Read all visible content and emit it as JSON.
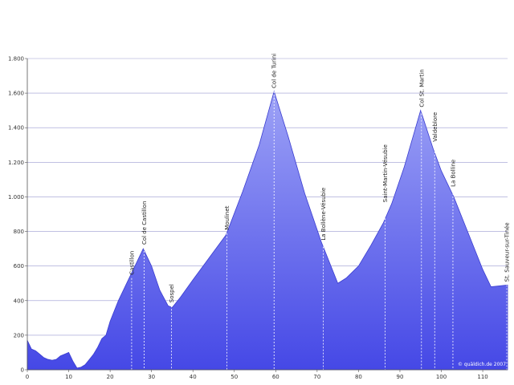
{
  "chart_data": {
    "type": "area",
    "title": "",
    "xlabel": "",
    "ylabel": "",
    "xlim": [
      0,
      116
    ],
    "ylim": [
      0,
      1800
    ],
    "grid": true,
    "credit": "© quäldich.de 2007",
    "colors": {
      "fill_top": "#9da2f6",
      "fill_bottom": "#4548e6",
      "stroke": "#3a3dd0",
      "grid": "#9a9ad0",
      "marker": "#ffffff"
    },
    "y_ticks": [
      {
        "value": 0,
        "label": "0"
      },
      {
        "value": 200,
        "label": "200"
      },
      {
        "value": 400,
        "label": "400"
      },
      {
        "value": 600,
        "label": "600"
      },
      {
        "value": 800,
        "label": "800"
      },
      {
        "value": 1000,
        "label": "1.000"
      },
      {
        "value": 1200,
        "label": "1.200"
      },
      {
        "value": 1400,
        "label": "1.400"
      },
      {
        "value": 1600,
        "label": "1.600"
      },
      {
        "value": 1800,
        "label": "1.800"
      }
    ],
    "x_ticks": [
      {
        "value": 0,
        "label": "0"
      },
      {
        "value": 10,
        "label": "10"
      },
      {
        "value": 20,
        "label": "20"
      },
      {
        "value": 30,
        "label": "30"
      },
      {
        "value": 40,
        "label": "40"
      },
      {
        "value": 50,
        "label": "50"
      },
      {
        "value": 60,
        "label": "60"
      },
      {
        "value": 70,
        "label": "70"
      },
      {
        "value": 80,
        "label": "80"
      },
      {
        "value": 90,
        "label": "90"
      },
      {
        "value": 100,
        "label": "100"
      },
      {
        "value": 110,
        "label": "110"
      }
    ],
    "series": [
      {
        "x": [
          0,
          1,
          2,
          3,
          4,
          5,
          6,
          7,
          8,
          9,
          10,
          11,
          12,
          13,
          14,
          15,
          16,
          17,
          18,
          19,
          20,
          22,
          24,
          26,
          28,
          30,
          32,
          34,
          35,
          37,
          40,
          44,
          48,
          52,
          56,
          59.6,
          63,
          67,
          71,
          72.5,
          75,
          77,
          80,
          83,
          86,
          88,
          91,
          95,
          98,
          100,
          103,
          106,
          110,
          112,
          116
        ],
        "y": [
          170,
          120,
          110,
          90,
          70,
          60,
          55,
          60,
          80,
          90,
          100,
          50,
          10,
          15,
          30,
          60,
          90,
          130,
          180,
          200,
          280,
          400,
          500,
          600,
          700,
          600,
          460,
          370,
          360,
          420,
          520,
          650,
          780,
          1030,
          1300,
          1610,
          1350,
          1020,
          740,
          650,
          500,
          530,
          600,
          720,
          850,
          960,
          1170,
          1500,
          1280,
          1150,
          1000,
          820,
          580,
          480,
          490
        ]
      }
    ],
    "points_of_interest": [
      {
        "x": 25.2,
        "y": 530,
        "label": "Castillon"
      },
      {
        "x": 28.2,
        "y": 705,
        "label": "Col de Castillon"
      },
      {
        "x": 34.8,
        "y": 370,
        "label": "Sospel"
      },
      {
        "x": 48.2,
        "y": 790,
        "label": "Moulinet"
      },
      {
        "x": 59.6,
        "y": 1610,
        "label": "Col de Turini"
      },
      {
        "x": 71.5,
        "y": 730,
        "label": "La Bollène-Vésubie"
      },
      {
        "x": 86.4,
        "y": 950,
        "label": "Saint-Martin-Vésubie"
      },
      {
        "x": 95.2,
        "y": 1500,
        "label": "Col St. Martin"
      },
      {
        "x": 98.4,
        "y": 1300,
        "label": "Valdeblore"
      },
      {
        "x": 102.8,
        "y": 1040,
        "label": "La Bolline"
      },
      {
        "x": 116,
        "y": 490,
        "label": "St. Sauveur-sur-Tinée"
      }
    ]
  }
}
